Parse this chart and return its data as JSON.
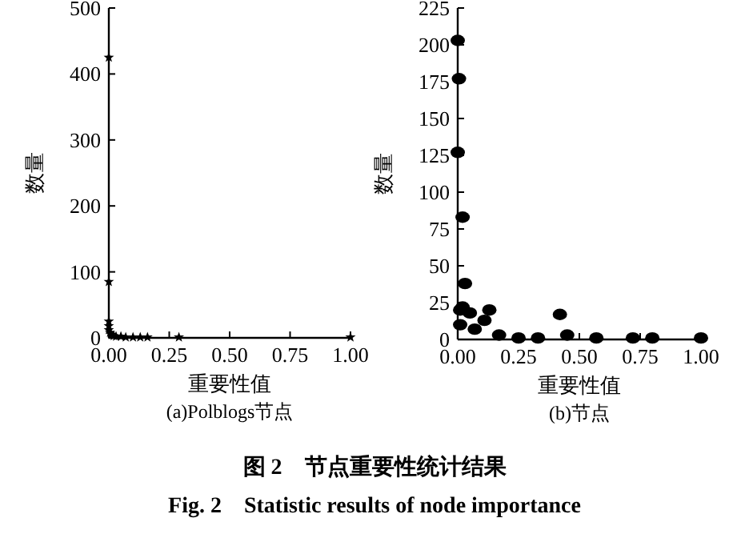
{
  "chart_data": [
    {
      "type": "scatter",
      "title": "(a)Polblogs节点",
      "xlabel": "重要性值",
      "ylabel": "数量",
      "marker": "star",
      "color": "#000000",
      "x": [
        0,
        0,
        0,
        0,
        0,
        0.005,
        0.01,
        0.02,
        0.03,
        0.05,
        0.07,
        0.1,
        0.13,
        0.16,
        0.29,
        1.0
      ],
      "values": [
        425,
        85,
        25,
        18,
        12,
        8,
        5,
        3,
        2,
        2,
        1,
        1,
        1,
        1,
        1,
        1
      ],
      "xlim": [
        0,
        1
      ],
      "ylim": [
        0,
        500
      ],
      "xticks": [
        {
          "value": 0,
          "label": "0.00"
        },
        {
          "value": 0.25,
          "label": "0.25"
        },
        {
          "value": 0.5,
          "label": "0.50"
        },
        {
          "value": 0.75,
          "label": "0.75"
        },
        {
          "value": 1,
          "label": "1.00"
        }
      ],
      "yticks": [
        0,
        100,
        200,
        300,
        400,
        500
      ]
    },
    {
      "type": "scatter",
      "title": "(b)节点",
      "xlabel": "重要性值",
      "ylabel": "数量",
      "marker": "circle",
      "color": "#000000",
      "x": [
        0,
        0.005,
        0,
        0.02,
        0.03,
        0.01,
        0.02,
        0.05,
        0.11,
        0.13,
        0.42,
        0.45,
        0.57,
        0.72,
        0.8,
        1.0,
        0.01,
        0.07,
        0.17,
        0.25,
        0.33
      ],
      "values": [
        203,
        177,
        127,
        83,
        38,
        20,
        22,
        18,
        13,
        20,
        17,
        3,
        1,
        1,
        1,
        1,
        10,
        7,
        3,
        1,
        1
      ],
      "xlim": [
        0,
        1
      ],
      "ylim": [
        0,
        225
      ],
      "xticks": [
        {
          "value": 0,
          "label": "0.00"
        },
        {
          "value": 0.25,
          "label": "0.25"
        },
        {
          "value": 0.5,
          "label": "0.50"
        },
        {
          "value": 0.75,
          "label": "0.75"
        },
        {
          "value": 1,
          "label": "1.00"
        }
      ],
      "yticks": [
        0,
        25,
        50,
        75,
        100,
        125,
        150,
        175,
        200,
        225
      ],
      "annotations": [
        "图 2　节点重要性统计结果",
        "Fig. 2　Statistic results of node importance"
      ]
    }
  ]
}
